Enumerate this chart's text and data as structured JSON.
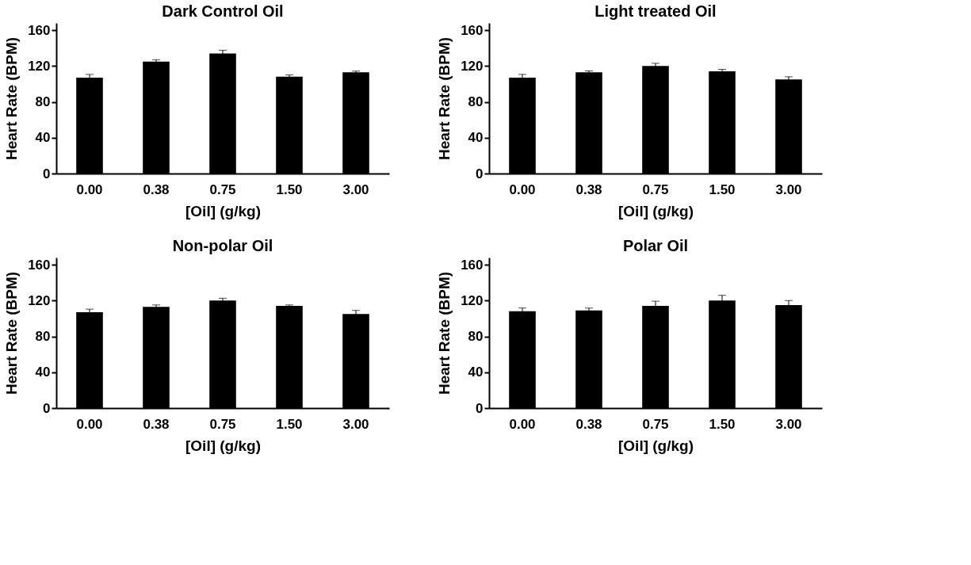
{
  "chart_data": [
    {
      "type": "bar",
      "title": "Dark Control Oil",
      "xlabel": "[Oil] (g/kg)",
      "ylabel": "Heart Rate (BPM)",
      "categories": [
        "0.00",
        "0.38",
        "0.75",
        "1.50",
        "3.00"
      ],
      "values": [
        107,
        125,
        134,
        108,
        113
      ],
      "errors": [
        3.6,
        2,
        3.6,
        2,
        1.3
      ],
      "color": "#000000",
      "ylim": [
        0,
        168
      ],
      "yticks": [
        0,
        40,
        80,
        120,
        160
      ],
      "grid": false
    },
    {
      "type": "bar",
      "title": "Light treated Oil",
      "xlabel": "[Oil] (g/kg)",
      "ylabel": "Heart Rate (BPM)",
      "categories": [
        "0.00",
        "0.38",
        "0.75",
        "1.50",
        "3.00"
      ],
      "values": [
        107,
        113,
        120,
        114,
        105
      ],
      "errors": [
        3.6,
        1.5,
        3,
        2.3,
        3
      ],
      "color": "#000000",
      "ylim": [
        0,
        168
      ],
      "yticks": [
        0,
        40,
        80,
        120,
        160
      ],
      "grid": false
    },
    {
      "type": "bar",
      "title": "Non-polar Oil",
      "xlabel": "[Oil] (g/kg)",
      "ylabel": "Heart Rate (BPM)",
      "categories": [
        "0.00",
        "0.38",
        "0.75",
        "1.50",
        "3.00"
      ],
      "values": [
        107,
        113,
        120,
        114,
        105
      ],
      "errors": [
        3.4,
        2.1,
        2.6,
        1.1,
        4
      ],
      "color": "#000000",
      "ylim": [
        0,
        168
      ],
      "yticks": [
        0,
        40,
        80,
        120,
        160
      ],
      "grid": false
    },
    {
      "type": "bar",
      "title": "Polar Oil",
      "xlabel": "[Oil] (g/kg)",
      "ylabel": "Heart Rate (BPM)",
      "categories": [
        "0.00",
        "0.38",
        "0.75",
        "1.50",
        "3.00"
      ],
      "values": [
        108,
        109,
        114,
        120,
        115
      ],
      "errors": [
        3.7,
        2.6,
        5.3,
        5.8,
        5
      ],
      "color": "#000000",
      "ylim": [
        0,
        168
      ],
      "yticks": [
        0,
        40,
        80,
        120,
        160
      ],
      "grid": false
    }
  ]
}
